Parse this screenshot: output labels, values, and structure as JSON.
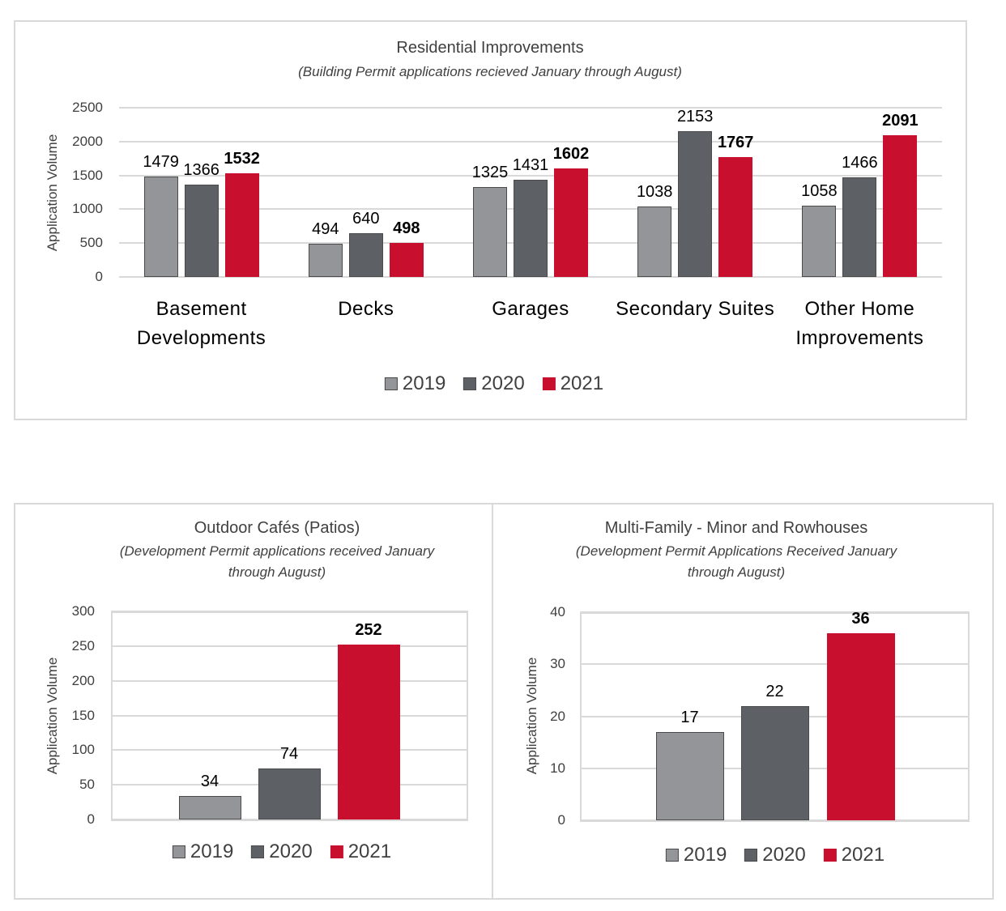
{
  "colors": {
    "2019": "#939598",
    "2020": "#5d6065",
    "2021": "#c8102e"
  },
  "chart_data": [
    {
      "type": "bar",
      "title": "Residential Improvements",
      "subtitle": "(Building Permit applications recieved January through August)",
      "ylabel": "Application Volume",
      "xlabel": "",
      "ylim": [
        0,
        2500
      ],
      "yticks": [
        "0",
        "500",
        "1000",
        "1500",
        "2000",
        "2500"
      ],
      "grid": true,
      "legend_position": "bottom",
      "categories": [
        "Basement Developments",
        "Decks",
        "Garages",
        "Secondary Suites",
        "Other Home Improvements"
      ],
      "series": [
        {
          "name": "2019",
          "values": [
            1479,
            494,
            1325,
            1038,
            1058
          ]
        },
        {
          "name": "2020",
          "values": [
            1366,
            640,
            1431,
            2153,
            1466
          ]
        },
        {
          "name": "2021",
          "values": [
            1532,
            498,
            1602,
            1767,
            2091
          ]
        }
      ]
    },
    {
      "type": "bar",
      "title": "Outdoor Cafés (Patios)",
      "subtitle": "(Development Permit applications received January through August)",
      "ylabel": "Application Volume",
      "xlabel": "",
      "ylim": [
        0,
        300
      ],
      "yticks": [
        "0",
        "50",
        "100",
        "150",
        "200",
        "250",
        "300"
      ],
      "grid": true,
      "legend_position": "bottom",
      "categories": [
        ""
      ],
      "series": [
        {
          "name": "2019",
          "values": [
            34
          ]
        },
        {
          "name": "2020",
          "values": [
            74
          ]
        },
        {
          "name": "2021",
          "values": [
            252
          ]
        }
      ]
    },
    {
      "type": "bar",
      "title": "Multi-Family - Minor and Rowhouses",
      "subtitle": "(Development Permit Applications Received January through August)",
      "ylabel": "Application Volume",
      "xlabel": "",
      "ylim": [
        0,
        40
      ],
      "yticks": [
        "0",
        "10",
        "20",
        "30",
        "40"
      ],
      "grid": true,
      "legend_position": "bottom",
      "categories": [
        ""
      ],
      "series": [
        {
          "name": "2019",
          "values": [
            17
          ]
        },
        {
          "name": "2020",
          "values": [
            22
          ]
        },
        {
          "name": "2021",
          "values": [
            36
          ]
        }
      ]
    }
  ]
}
